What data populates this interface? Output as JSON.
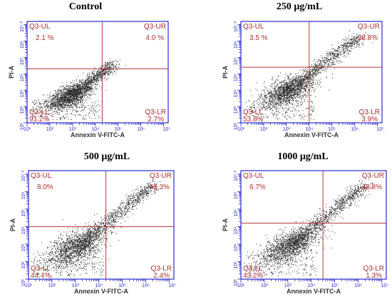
{
  "figure": {
    "x_axis_label": "Annexin V-FITC-A",
    "y_axis_label": "PI-A",
    "x_tick_labels": [
      "10^1",
      "10^2",
      "10^3",
      "10^4",
      "10^5",
      "10^6",
      "10^7.2"
    ],
    "y_tick_labels": [
      "10^1",
      "10^2",
      "10^3",
      "10^4",
      "10^5",
      "10^6",
      "10^7.2"
    ],
    "quadrant_names": {
      "ul": "Q3-UL",
      "ur": "Q3-UR",
      "ll": "Q3-LL",
      "lr": "Q3-LR"
    },
    "colors": {
      "frame": "#2a2acc",
      "gate": "#b23a3a",
      "quadrant_text": "#b03030",
      "dots": "#2b2b2b"
    }
  },
  "chart_data": [
    {
      "type": "scatter",
      "title": "Control",
      "xlabel": "Annexin V-FITC-A",
      "ylabel": "PI-A",
      "xlim": [
        1,
        7.2
      ],
      "ylim": [
        1,
        7.2
      ],
      "x_scale": "log",
      "y_scale": "log",
      "gate": {
        "x": 4.3,
        "y": 4.3
      },
      "quadrants": {
        "UL": "2.1 %",
        "UR": "4.0 %",
        "LL": "91.2%",
        "LR": "2.7%"
      },
      "population": {
        "main_center": [
          2.8,
          2.6
        ],
        "diag_end": [
          4.8,
          4.6
        ],
        "spread": 0.5
      }
    },
    {
      "type": "scatter",
      "title": "250 μg/mL",
      "xlabel": "Annexin V-FITC-A",
      "ylabel": "PI-A",
      "xlim": [
        1,
        7.2
      ],
      "ylim": [
        1,
        7.2
      ],
      "x_scale": "log",
      "y_scale": "log",
      "gate": {
        "x": 4.0,
        "y": 4.4
      },
      "quadrants": {
        "UL": "3.5 %",
        "UR": "38.8%",
        "LL": "53.8%",
        "LR": "3.9%"
      },
      "population": {
        "main_center": [
          3.0,
          2.9
        ],
        "diag_end": [
          6.2,
          6.3
        ],
        "spread": 0.6
      }
    },
    {
      "type": "scatter",
      "title": "500 μg/mL",
      "xlabel": "Annexin V-FITC-A",
      "ylabel": "PI-A",
      "xlim": [
        1,
        7.2
      ],
      "ylim": [
        1,
        7.2
      ],
      "x_scale": "log",
      "y_scale": "log",
      "gate": {
        "x": 4.3,
        "y": 4.0
      },
      "quadrants": {
        "UL": "8.0%",
        "UR": "45.3%",
        "LL": "44.4%",
        "LR": "2.4%"
      },
      "population": {
        "main_center": [
          3.0,
          2.8
        ],
        "diag_end": [
          6.3,
          6.4
        ],
        "spread": 0.65
      }
    },
    {
      "type": "scatter",
      "title": "1000 μg/mL",
      "xlabel": "Annexin V-FITC-A",
      "ylabel": "PI-A",
      "xlim": [
        1,
        7.2
      ],
      "ylim": [
        1,
        7.2
      ],
      "x_scale": "log",
      "y_scale": "log",
      "gate": {
        "x": 4.5,
        "y": 4.2
      },
      "quadrants": {
        "UL": "6.7%",
        "UR": "48.8%",
        "LL": "43.2%",
        "LR": "1.3%"
      },
      "population": {
        "main_center": [
          3.1,
          2.9
        ],
        "diag_end": [
          6.3,
          6.4
        ],
        "spread": 0.6
      }
    }
  ]
}
